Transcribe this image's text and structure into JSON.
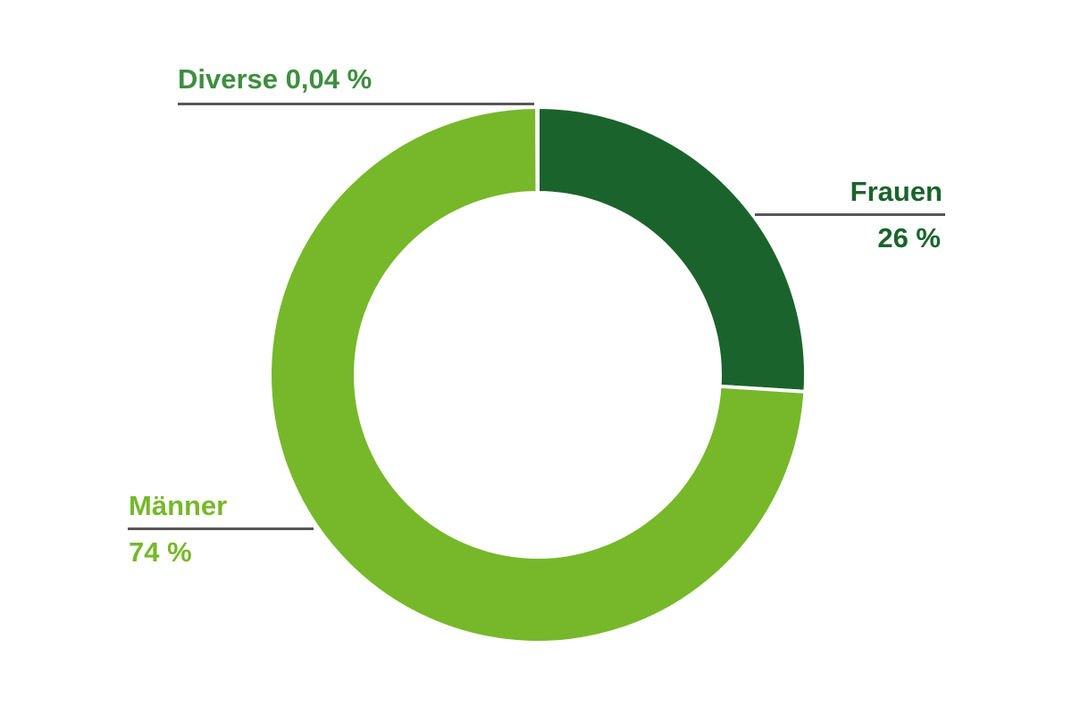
{
  "chart_data": {
    "type": "pie",
    "donut": true,
    "title": "",
    "series": [
      {
        "label": "Frauen",
        "value_pct": 26,
        "display": "26 %",
        "color": "#1B632C"
      },
      {
        "label": "Männer",
        "value_pct": 73.96,
        "display": "74 %",
        "color": "#76B82A"
      },
      {
        "label": "Diverse",
        "value_pct": 0.04,
        "display": "0,04 %",
        "color": "#FFFFFF"
      }
    ],
    "start_angle": "top",
    "direction": "clockwise",
    "inner_radius_ratio": 0.68,
    "legend_position": "none",
    "annotation_style": "leader-lines",
    "segment_separator_color": "#FFFFFF"
  },
  "annotations": {
    "diverse": {
      "label": "Diverse 0,04 %"
    },
    "frauen": {
      "title": "Frauen",
      "value": "26 %"
    },
    "maenner": {
      "title": "Männer",
      "value": "74 %"
    }
  },
  "colors": {
    "background": "#FFFFFF",
    "frauen_segment": "#1B632C",
    "maenner_segment": "#76B82A",
    "diverse_label": "#3E8E40",
    "frauen_label": "#1B632C",
    "maenner_label": "#76B82A",
    "leader_line": "#575756"
  }
}
